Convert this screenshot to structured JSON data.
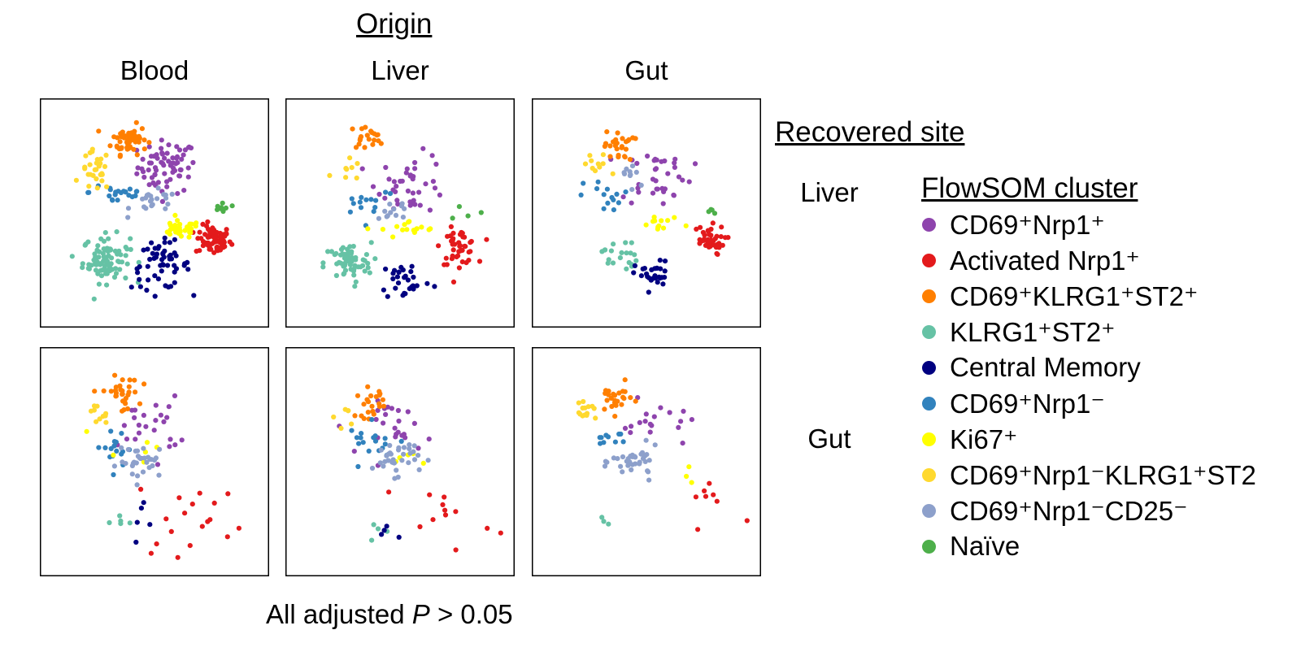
{
  "header": {
    "origin_title": "Origin",
    "columns": [
      "Blood",
      "Liver",
      "Gut"
    ]
  },
  "side": {
    "recovered_site_title": "Recovered site",
    "rows": [
      "Liver",
      "Gut"
    ]
  },
  "legend": {
    "title": "FlowSOM cluster",
    "items": [
      {
        "key": "cd69_nrp1_pos",
        "label": "CD69⁺Nrp1⁺",
        "color": "#8e44ad"
      },
      {
        "key": "activated_nrp1",
        "label": "Activated Nrp1⁺",
        "color": "#e31a1c"
      },
      {
        "key": "cd69_klrg1_st2",
        "label": "CD69⁺KLRG1⁺ST2⁺",
        "color": "#ff7f00"
      },
      {
        "key": "klrg1_st2",
        "label": "KLRG1⁺ST2⁺",
        "color": "#66c2a5"
      },
      {
        "key": "central_memory",
        "label": "Central Memory",
        "color": "#000080"
      },
      {
        "key": "cd69_nrp1_neg",
        "label": "CD69⁺Nrp1⁻",
        "color": "#3182bd"
      },
      {
        "key": "ki67",
        "label": "Ki67⁺",
        "color": "#ffff00"
      },
      {
        "key": "cd69_nrp1neg_klrg1_st2",
        "label": "CD69⁺Nrp1⁻KLRG1⁺ST2",
        "color": "#ffd92f"
      },
      {
        "key": "cd69_nrp1neg_cd25neg",
        "label": "CD69⁺Nrp1⁻CD25⁻",
        "color": "#8da0cb"
      },
      {
        "key": "naive",
        "label": "Naïve",
        "color": "#4daf4a"
      }
    ]
  },
  "footer": {
    "prefix": "All adjusted ",
    "italic": "P",
    "suffix": " > 0.05"
  },
  "chart_data": {
    "type": "scatter",
    "xlim": [
      0,
      100
    ],
    "ylim": [
      0,
      100
    ],
    "axes_visible": false,
    "panels": [
      {
        "origin": "Blood",
        "recovered_site": "Liver",
        "clusters": {
          "cd69_nrp1_pos": {
            "center": [
              56,
              72
            ],
            "spread": [
              10,
              9
            ],
            "n": 70
          },
          "activated_nrp1": {
            "center": [
              78,
              37
            ],
            "spread": [
              6,
              5
            ],
            "n": 70
          },
          "cd69_klrg1_st2": {
            "center": [
              38,
              85
            ],
            "spread": [
              6,
              5
            ],
            "n": 55
          },
          "klrg1_st2": {
            "center": [
              27,
              28
            ],
            "spread": [
              8,
              8
            ],
            "n": 90
          },
          "central_memory": {
            "center": [
              53,
              25
            ],
            "spread": [
              10,
              8
            ],
            "n": 55
          },
          "cd69_nrp1_neg": {
            "center": [
              33,
              60
            ],
            "spread": [
              10,
              5
            ],
            "n": 22
          },
          "ki67": {
            "center": [
              62,
              42
            ],
            "spread": [
              7,
              3
            ],
            "n": 35
          },
          "cd69_nrp1neg_klrg1_st2": {
            "center": [
              22,
              70
            ],
            "spread": [
              5,
              7
            ],
            "n": 28
          },
          "cd69_nrp1neg_cd25neg": {
            "center": [
              50,
              55
            ],
            "spread": [
              8,
              4
            ],
            "n": 22
          },
          "naive": {
            "center": [
              82,
              52
            ],
            "spread": [
              3,
              3
            ],
            "n": 8
          }
        }
      },
      {
        "origin": "Liver",
        "recovered_site": "Liver",
        "clusters": {
          "cd69_nrp1_pos": {
            "center": [
              56,
              64
            ],
            "spread": [
              12,
              10
            ],
            "n": 40
          },
          "activated_nrp1": {
            "center": [
              78,
              34
            ],
            "spread": [
              6,
              6
            ],
            "n": 45
          },
          "cd69_klrg1_st2": {
            "center": [
              34,
              86
            ],
            "spread": [
              6,
              4
            ],
            "n": 20
          },
          "klrg1_st2": {
            "center": [
              25,
              26
            ],
            "spread": [
              8,
              7
            ],
            "n": 65
          },
          "central_memory": {
            "center": [
              53,
              18
            ],
            "spread": [
              9,
              7
            ],
            "n": 30
          },
          "cd69_nrp1_neg": {
            "center": [
              35,
              56
            ],
            "spread": [
              10,
              6
            ],
            "n": 14
          },
          "ki67": {
            "center": [
              55,
              42
            ],
            "spread": [
              10,
              3
            ],
            "n": 16
          },
          "cd69_nrp1neg_klrg1_st2": {
            "center": [
              24,
              70
            ],
            "spread": [
              5,
              5
            ],
            "n": 8
          },
          "cd69_nrp1neg_cd25neg": {
            "center": [
              47,
              52
            ],
            "spread": [
              6,
              4
            ],
            "n": 12
          },
          "naive": {
            "center": [
              82,
              50
            ],
            "spread": [
              4,
              3
            ],
            "n": 4
          }
        }
      },
      {
        "origin": "Gut",
        "recovered_site": "Liver",
        "clusters": {
          "cd69_nrp1_pos": {
            "center": [
              55,
              68
            ],
            "spread": [
              12,
              10
            ],
            "n": 35
          },
          "activated_nrp1": {
            "center": [
              79,
              37
            ],
            "spread": [
              6,
              5
            ],
            "n": 40
          },
          "cd69_klrg1_st2": {
            "center": [
              37,
              82
            ],
            "spread": [
              5,
              5
            ],
            "n": 25
          },
          "klrg1_st2": {
            "center": [
              37,
              30
            ],
            "spread": [
              6,
              6
            ],
            "n": 20
          },
          "central_memory": {
            "center": [
              53,
              20
            ],
            "spread": [
              6,
              5
            ],
            "n": 30
          },
          "cd69_nrp1_neg": {
            "center": [
              33,
              58
            ],
            "spread": [
              9,
              6
            ],
            "n": 14
          },
          "ki67": {
            "center": [
              58,
              44
            ],
            "spread": [
              9,
              3
            ],
            "n": 12
          },
          "cd69_nrp1neg_klrg1_st2": {
            "center": [
              26,
              72
            ],
            "spread": [
              5,
              5
            ],
            "n": 10
          },
          "cd69_nrp1neg_cd25neg": {
            "center": [
              43,
              68
            ],
            "spread": [
              6,
              6
            ],
            "n": 10
          },
          "naive": {
            "center": [
              82,
              52
            ],
            "spread": [
              4,
              3
            ],
            "n": 4
          }
        }
      },
      {
        "origin": "Blood",
        "recovered_site": "Gut",
        "clusters": {
          "cd69_nrp1_pos": {
            "center": [
              48,
              67
            ],
            "spread": [
              10,
              10
            ],
            "n": 25
          },
          "activated_nrp1": {
            "center": [
              70,
              25
            ],
            "spread": [
              20,
              14
            ],
            "n": 18
          },
          "cd69_klrg1_st2": {
            "center": [
              34,
              82
            ],
            "spread": [
              6,
              6
            ],
            "n": 30
          },
          "klrg1_st2": {
            "center": [
              33,
              21
            ],
            "spread": [
              5,
              3
            ],
            "n": 5
          },
          "central_memory": {
            "center": [
              40,
              25
            ],
            "spread": [
              12,
              8
            ],
            "n": 5
          },
          "cd69_nrp1_neg": {
            "center": [
              33,
              57
            ],
            "spread": [
              8,
              6
            ],
            "n": 16
          },
          "ki67": {
            "center": [
              40,
              55
            ],
            "spread": [
              20,
              6
            ],
            "n": 6
          },
          "cd69_nrp1neg_klrg1_st2": {
            "center": [
              22,
              72
            ],
            "spread": [
              4,
              4
            ],
            "n": 10
          },
          "cd69_nrp1neg_cd25neg": {
            "center": [
              45,
              50
            ],
            "spread": [
              9,
              6
            ],
            "n": 30
          },
          "naive": {
            "center": [
              50,
              50
            ],
            "spread": [
              0,
              0
            ],
            "n": 0
          }
        }
      },
      {
        "origin": "Liver",
        "recovered_site": "Gut",
        "clusters": {
          "cd69_nrp1_pos": {
            "center": [
              50,
              66
            ],
            "spread": [
              11,
              9
            ],
            "n": 25
          },
          "activated_nrp1": {
            "center": [
              70,
              25
            ],
            "spread": [
              18,
              12
            ],
            "n": 12
          },
          "cd69_klrg1_st2": {
            "center": [
              36,
              78
            ],
            "spread": [
              5,
              5
            ],
            "n": 22
          },
          "klrg1_st2": {
            "center": [
              40,
              16
            ],
            "spread": [
              6,
              3
            ],
            "n": 4
          },
          "central_memory": {
            "center": [
              45,
              16
            ],
            "spread": [
              8,
              3
            ],
            "n": 4
          },
          "cd69_nrp1_neg": {
            "center": [
              38,
              60
            ],
            "spread": [
              9,
              6
            ],
            "n": 18
          },
          "ki67": {
            "center": [
              52,
              50
            ],
            "spread": [
              10,
              5
            ],
            "n": 5
          },
          "cd69_nrp1neg_klrg1_st2": {
            "center": [
              25,
              72
            ],
            "spread": [
              4,
              4
            ],
            "n": 6
          },
          "cd69_nrp1neg_cd25neg": {
            "center": [
              48,
              52
            ],
            "spread": [
              8,
              6
            ],
            "n": 35
          },
          "naive": {
            "center": [
              50,
              50
            ],
            "spread": [
              0,
              0
            ],
            "n": 0
          }
        }
      },
      {
        "origin": "Gut",
        "recovered_site": "Gut",
        "clusters": {
          "cd69_nrp1_pos": {
            "center": [
              55,
              68
            ],
            "spread": [
              12,
              8
            ],
            "n": 18
          },
          "activated_nrp1": {
            "center": [
              80,
              28
            ],
            "spread": [
              12,
              12
            ],
            "n": 8
          },
          "cd69_klrg1_st2": {
            "center": [
              35,
              80
            ],
            "spread": [
              6,
              5
            ],
            "n": 25
          },
          "klrg1_st2": {
            "center": [
              30,
              22
            ],
            "spread": [
              3,
              2
            ],
            "n": 3
          },
          "central_memory": {
            "center": [
              50,
              50
            ],
            "spread": [
              0,
              0
            ],
            "n": 0
          },
          "cd69_nrp1_neg": {
            "center": [
              32,
              62
            ],
            "spread": [
              6,
              5
            ],
            "n": 10
          },
          "ki67": {
            "center": [
              70,
              47
            ],
            "spread": [
              6,
              4
            ],
            "n": 3
          },
          "cd69_nrp1neg_klrg1_st2": {
            "center": [
              21,
              73
            ],
            "spread": [
              4,
              3
            ],
            "n": 15
          },
          "cd69_nrp1neg_cd25neg": {
            "center": [
              45,
              50
            ],
            "spread": [
              8,
              5
            ],
            "n": 35
          },
          "naive": {
            "center": [
              50,
              50
            ],
            "spread": [
              0,
              0
            ],
            "n": 0
          }
        }
      }
    ]
  }
}
